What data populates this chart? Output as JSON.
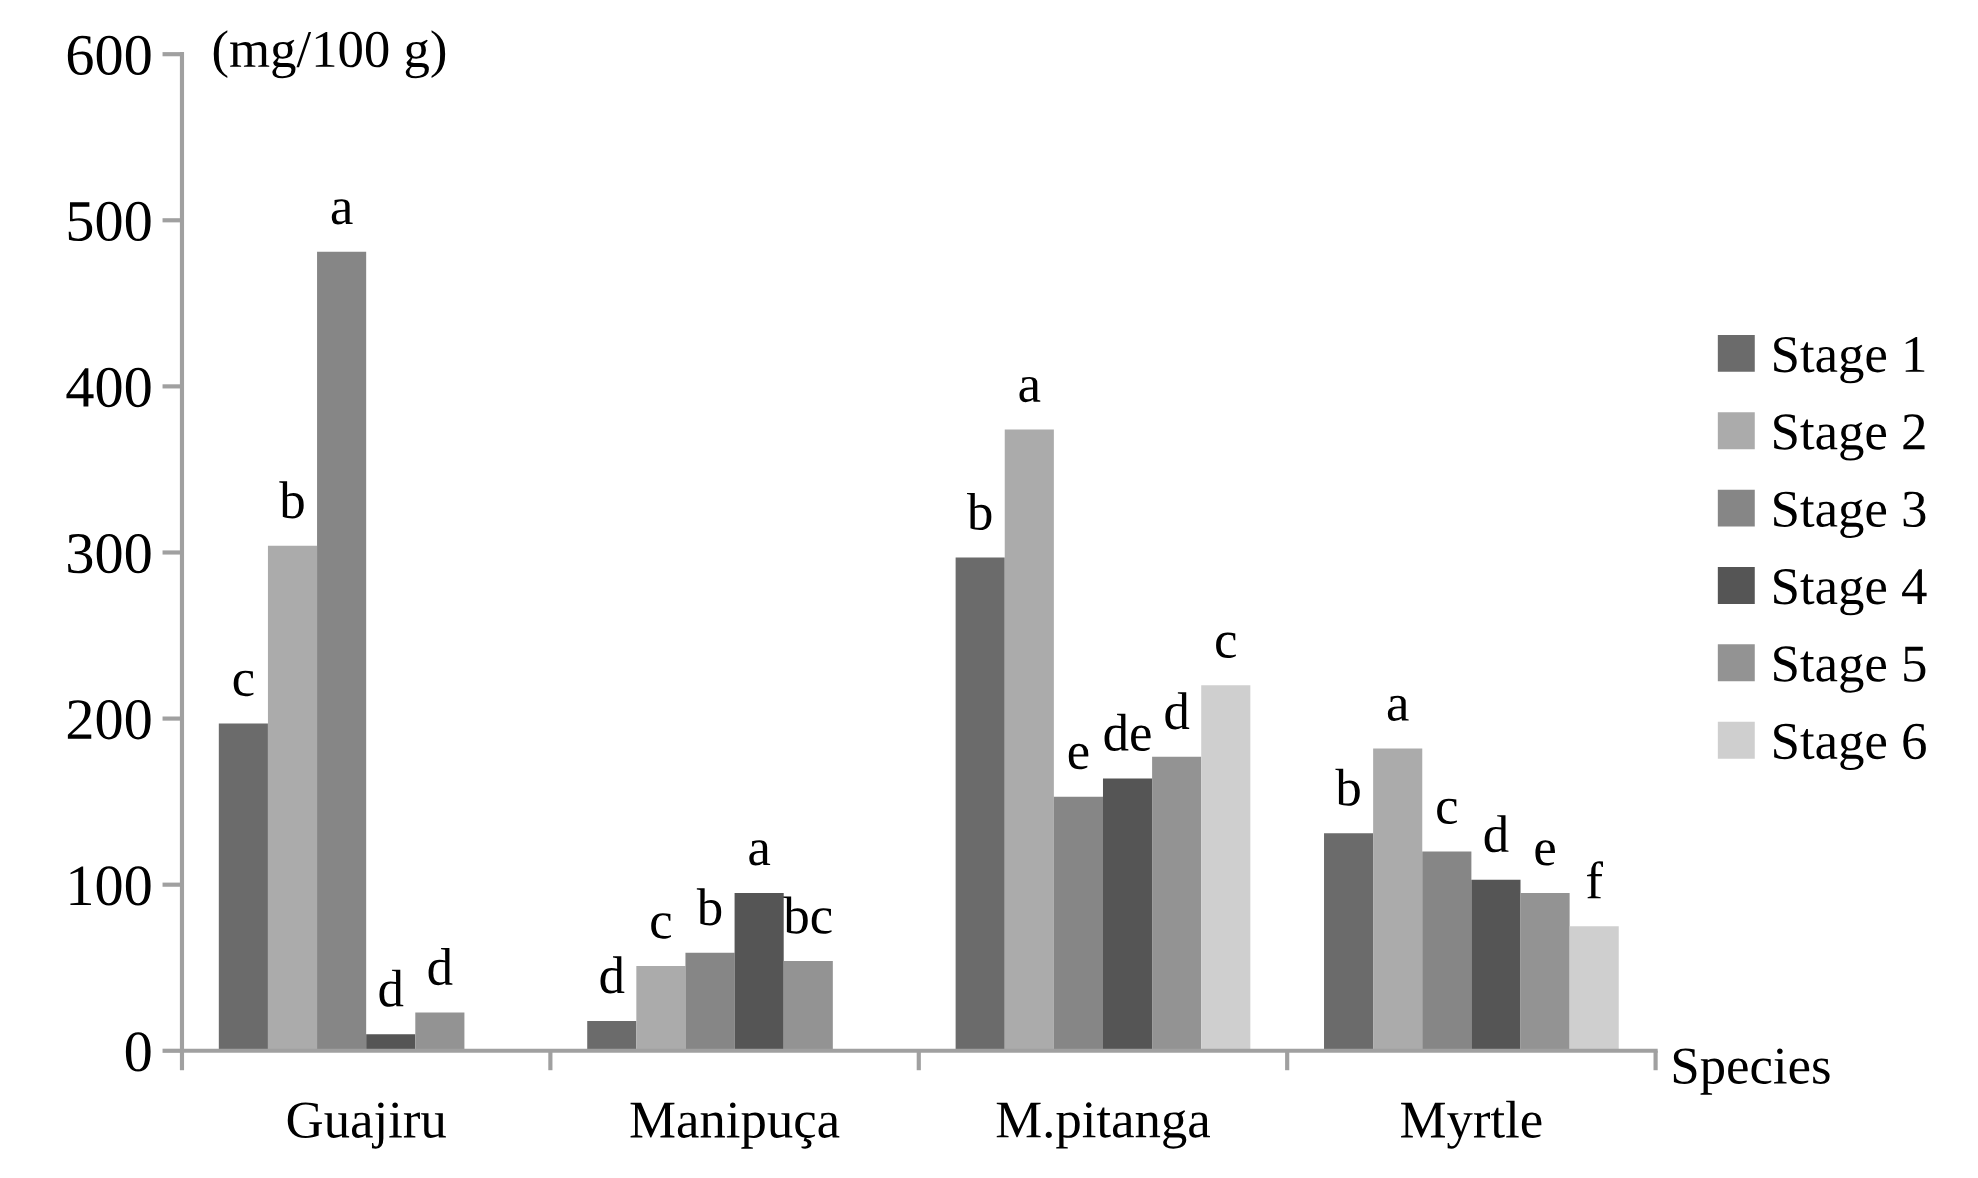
{
  "chart_data": {
    "type": "bar",
    "ylabel": "(mg/100 g)",
    "xlabel": "Species",
    "categories": [
      "Guajiru",
      "Manipuça",
      "M.pitanga",
      "Myrtle"
    ],
    "series": [
      {
        "name": "Stage 1",
        "color": "#6b6b6b",
        "values": [
          197,
          18,
          297,
          131
        ],
        "value_labels": [
          "c",
          "d",
          "b",
          "b"
        ]
      },
      {
        "name": "Stage 2",
        "color": "#ababab",
        "values": [
          304,
          51,
          374,
          182
        ],
        "value_labels": [
          "b",
          "c",
          "a",
          "a"
        ]
      },
      {
        "name": "Stage 3",
        "color": "#868686",
        "values": [
          481,
          59,
          153,
          120
        ],
        "value_labels": [
          "a",
          "b",
          "e",
          "c"
        ]
      },
      {
        "name": "Stage 4",
        "color": "#555555",
        "values": [
          10,
          95,
          164,
          103
        ],
        "value_labels": [
          "d",
          "a",
          "de",
          "d"
        ]
      },
      {
        "name": "Stage 5",
        "color": "#939393",
        "values": [
          23,
          54,
          177,
          95
        ],
        "value_labels": [
          "d",
          "bc",
          "d",
          "e"
        ]
      },
      {
        "name": "Stage 6",
        "color": "#cfcfcf",
        "values": [
          null,
          null,
          220,
          75
        ],
        "value_labels": [
          null,
          null,
          "c",
          "f"
        ]
      }
    ],
    "ylim": [
      0,
      600
    ],
    "yticks": [
      0,
      100,
      200,
      300,
      400,
      500,
      600
    ],
    "grid": false,
    "legend": "right"
  }
}
